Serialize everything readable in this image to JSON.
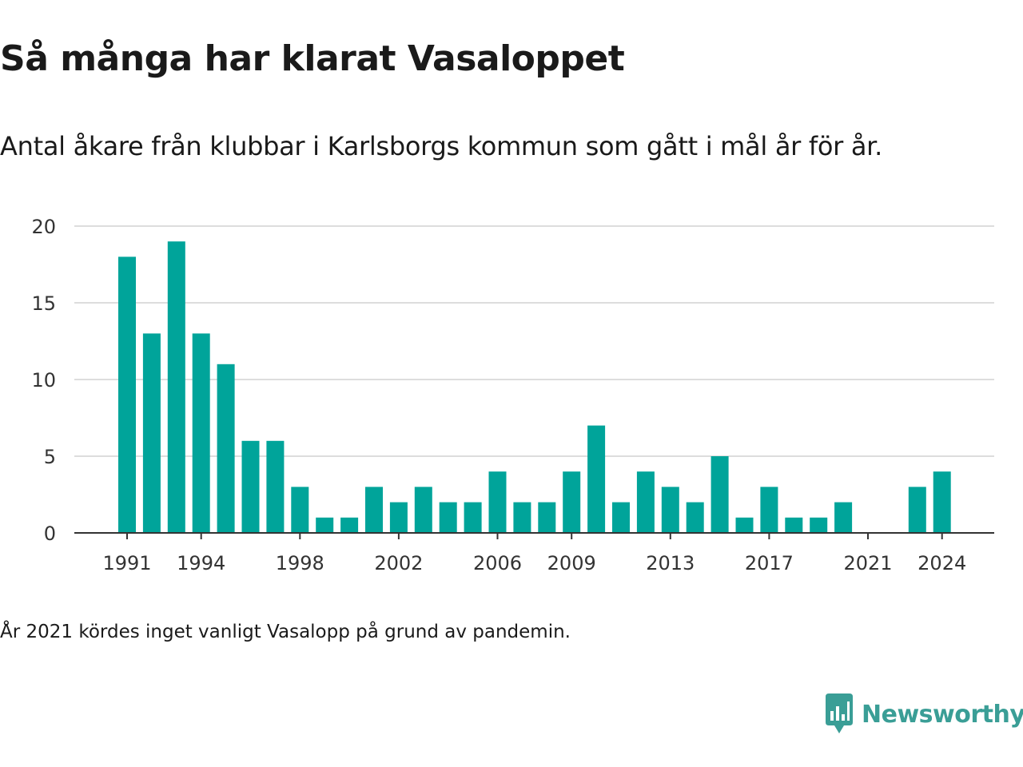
{
  "header": {
    "title": "Så många har klarat Vasaloppet",
    "subtitle": "Antal åkare från klubbar i Karlsborgs kommun som gått i mål år för år."
  },
  "footer": {
    "note": "År 2021 kördes inget vanligt Vasalopp på grund av pandemin.",
    "brand": "Newsworthy"
  },
  "colors": {
    "bar": "#00a49a",
    "brand": "#3a9e96",
    "grid": "#dddddd",
    "axis": "#333333",
    "text": "#333333"
  },
  "icons": {
    "brand_logo": "newsworthy-logo-icon"
  },
  "chart_data": {
    "type": "bar",
    "x": [
      1991,
      1992,
      1993,
      1994,
      1995,
      1996,
      1997,
      1998,
      1999,
      2000,
      2001,
      2002,
      2003,
      2004,
      2005,
      2006,
      2007,
      2008,
      2009,
      2010,
      2011,
      2012,
      2013,
      2014,
      2015,
      2016,
      2017,
      2018,
      2019,
      2020,
      2021,
      2022,
      2023,
      2024
    ],
    "values": [
      18,
      13,
      19,
      13,
      11,
      6,
      6,
      3,
      1,
      1,
      3,
      2,
      3,
      2,
      2,
      4,
      2,
      2,
      4,
      7,
      2,
      4,
      3,
      2,
      5,
      1,
      3,
      1,
      1,
      2,
      null,
      null,
      3,
      4
    ],
    "xticks": [
      "1991",
      "1994",
      "1998",
      "2002",
      "2006",
      "2009",
      "2013",
      "2017",
      "2021",
      "2024"
    ],
    "yticks": [
      "0",
      "5",
      "10",
      "15",
      "20"
    ],
    "ylim": [
      0,
      20
    ],
    "grid": true,
    "legend": "none"
  }
}
